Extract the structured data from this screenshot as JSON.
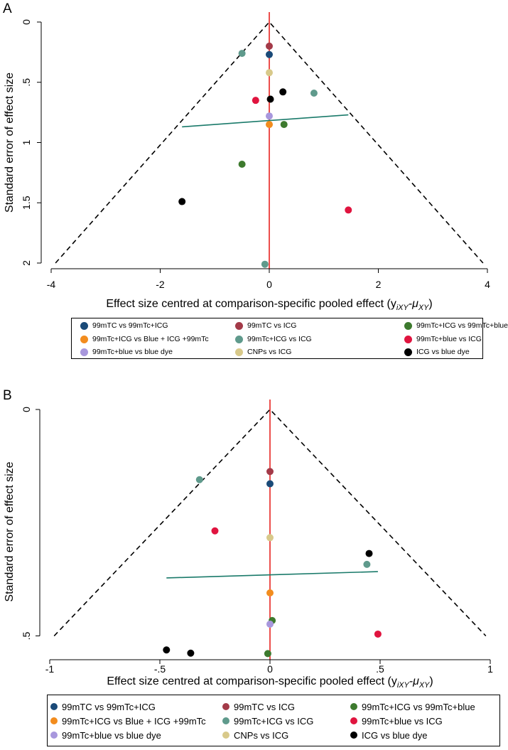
{
  "colors": {
    "99mTC vs 99mTc+ICG": "#1a4a78",
    "99mTC vs ICG": "#a33a48",
    "99mTc+ICG vs 99mTc+blue": "#3d7a2e",
    "99mTc+ICG vs Blue + ICG +99mTc": "#f28c1e",
    "99mTc+ICG vs ICG": "#5f9a8c",
    "99mTc+blue vs ICG": "#e0143f",
    "99mTc+blue vs blue dye": "#a897dd",
    "CNPs vs ICG": "#d8c98a",
    "ICG vs blue dye": "#000000",
    "regression": "#1a7a6a",
    "zero_line": "#e8231f"
  },
  "panels": [
    {
      "letter": "A",
      "chart_data": {
        "type": "scatter",
        "title": "",
        "xlabel": "Effect size centred at comparison-specific pooled effect (y",
        "xlabel_sub1": "iXY",
        "xlabel_mid": "-μ",
        "xlabel_sub2": "XY",
        "xlabel_end": ")",
        "ylabel": "Standard error of effect size",
        "xlim": [
          -4,
          4
        ],
        "ylim": [
          0,
          2
        ],
        "y_reversed": true,
        "xticks": [
          -4,
          -2,
          0,
          2,
          4
        ],
        "xtick_labels": [
          "-4",
          "-2",
          "0",
          "2",
          "4"
        ],
        "yticks": [
          0,
          0.5,
          1,
          1.5,
          2
        ],
        "ytick_labels": [
          "0",
          ".5",
          "1",
          "1.5",
          "2"
        ],
        "funnel": {
          "apex": [
            0,
            0
          ],
          "base_left": [
            -3.92,
            2.0
          ],
          "base_right": [
            3.92,
            2.0
          ]
        },
        "regression_line": {
          "x": [
            -1.6,
            1.45
          ],
          "y": [
            0.87,
            0.77
          ]
        },
        "points": [
          {
            "series": "99mTC vs 99mTc+ICG",
            "x": 0.0,
            "y": 0.27
          },
          {
            "series": "99mTC vs ICG",
            "x": 0.0,
            "y": 0.2
          },
          {
            "series": "99mTc+ICG vs ICG",
            "x": -0.5,
            "y": 0.26
          },
          {
            "series": "CNPs vs ICG",
            "x": 0.0,
            "y": 0.42
          },
          {
            "series": "ICG vs blue dye",
            "x": 0.25,
            "y": 0.58
          },
          {
            "series": "99mTc+ICG vs ICG",
            "x": 0.82,
            "y": 0.59
          },
          {
            "series": "99mTc+blue vs ICG",
            "x": -0.25,
            "y": 0.65
          },
          {
            "series": "ICG vs blue dye",
            "x": 0.02,
            "y": 0.64
          },
          {
            "series": "99mTc+blue vs blue dye",
            "x": 0.0,
            "y": 0.78
          },
          {
            "series": "99mTc+ICG vs Blue + ICG +99mTc",
            "x": 0.0,
            "y": 0.85
          },
          {
            "series": "99mTc+ICG vs 99mTc+blue",
            "x": 0.27,
            "y": 0.85
          },
          {
            "series": "99mTc+ICG vs 99mTc+blue",
            "x": -0.5,
            "y": 1.18
          },
          {
            "series": "ICG vs blue dye",
            "x": -1.6,
            "y": 1.49
          },
          {
            "series": "99mTc+blue vs ICG",
            "x": 1.45,
            "y": 1.56
          },
          {
            "series": "99mTc+ICG vs ICG",
            "x": -0.08,
            "y": 2.01
          }
        ]
      },
      "legend": [
        "99mTC vs 99mTc+ICG",
        "99mTC vs ICG",
        "99mTc+ICG vs 99mTc+blue",
        "99mTc+ICG vs Blue + ICG +99mTc",
        "99mTc+ICG vs ICG",
        "99mTc+blue vs ICG",
        "99mTc+blue vs blue dye",
        "CNPs vs ICG",
        "ICG vs blue dye"
      ]
    },
    {
      "letter": "B",
      "chart_data": {
        "type": "scatter",
        "title": "",
        "xlabel": "Effect size centred at comparison-specific pooled effect (y",
        "xlabel_sub1": "iXY",
        "xlabel_mid": "-μ",
        "xlabel_sub2": "XY",
        "xlabel_end": ")",
        "ylabel": "Standard error of effect size",
        "xlim": [
          -1,
          1
        ],
        "ylim": [
          0,
          0.54
        ],
        "y_reversed": true,
        "xticks": [
          -1,
          -0.5,
          0,
          0.5,
          1
        ],
        "xtick_labels": [
          "-1",
          "-.5",
          "0",
          ".5",
          "1"
        ],
        "yticks": [
          0,
          0.5
        ],
        "ytick_labels": [
          "0",
          ".5"
        ],
        "funnel": {
          "apex": [
            0,
            0
          ],
          "base_left": [
            -0.98,
            0.5
          ],
          "base_right": [
            0.98,
            0.5
          ]
        },
        "regression_line": {
          "x": [
            -0.47,
            0.49
          ],
          "y": [
            0.372,
            0.358
          ]
        },
        "points": [
          {
            "series": "99mTC vs ICG",
            "x": 0.0,
            "y": 0.137
          },
          {
            "series": "99mTc+ICG vs ICG",
            "x": -0.32,
            "y": 0.155
          },
          {
            "series": "99mTC vs 99mTc+ICG",
            "x": 0.0,
            "y": 0.164
          },
          {
            "series": "99mTc+blue vs ICG",
            "x": -0.25,
            "y": 0.268
          },
          {
            "series": "CNPs vs ICG",
            "x": 0.0,
            "y": 0.283
          },
          {
            "series": "ICG vs blue dye",
            "x": 0.45,
            "y": 0.318
          },
          {
            "series": "99mTc+ICG vs ICG",
            "x": 0.44,
            "y": 0.342
          },
          {
            "series": "99mTc+ICG vs Blue + ICG +99mTc",
            "x": 0.0,
            "y": 0.405
          },
          {
            "series": "99mTc+ICG vs 99mTc+blue",
            "x": 0.01,
            "y": 0.466
          },
          {
            "series": "99mTc+blue vs blue dye",
            "x": 0.0,
            "y": 0.474
          },
          {
            "series": "99mTc+blue vs ICG",
            "x": 0.49,
            "y": 0.496
          },
          {
            "series": "ICG vs blue dye",
            "x": -0.47,
            "y": 0.531
          },
          {
            "series": "ICG vs blue dye",
            "x": -0.36,
            "y": 0.538
          },
          {
            "series": "99mTc+ICG vs 99mTc+blue",
            "x": -0.01,
            "y": 0.539
          }
        ]
      },
      "legend": [
        "99mTC vs 99mTc+ICG",
        "99mTC vs ICG",
        "99mTc+ICG vs 99mTc+blue",
        "99mTc+ICG vs Blue + ICG +99mTc",
        "99mTc+ICG vs ICG",
        "99mTc+blue vs ICG",
        "99mTc+blue vs blue dye",
        "CNPs vs ICG",
        "ICG vs blue dye"
      ]
    }
  ]
}
